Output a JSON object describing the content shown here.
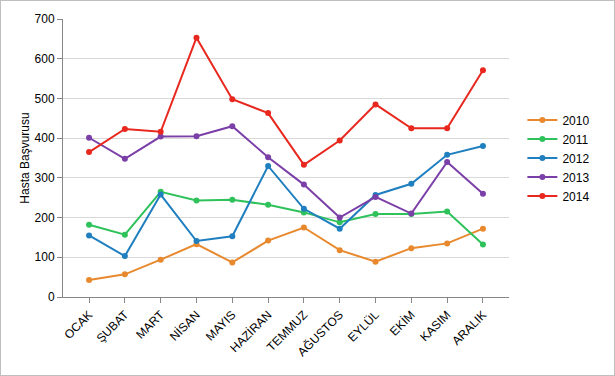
{
  "chart_data": {
    "type": "line",
    "y_label": "Hasta Başvurusu",
    "categories": [
      "OCAK",
      "ŞUBAT",
      "MART",
      "NİSAN",
      "MAYIS",
      "HAZİRAN",
      "TEMMUZ",
      "AĞUSTOS",
      "EYLÜL",
      "EKİM",
      "KASIM",
      "ARALIK"
    ],
    "series": [
      {
        "name": "2010",
        "color": "#e8892d",
        "values": [
          43,
          57,
          94,
          133,
          87,
          142,
          175,
          118,
          89,
          123,
          135,
          172
        ]
      },
      {
        "name": "2011",
        "color": "#2fc25b",
        "values": [
          182,
          157,
          265,
          243,
          245,
          232,
          213,
          188,
          209,
          209,
          215,
          132
        ]
      },
      {
        "name": "2012",
        "color": "#1f7fbf",
        "values": [
          155,
          103,
          258,
          141,
          153,
          330,
          222,
          172,
          257,
          285,
          358,
          380
        ]
      },
      {
        "name": "2013",
        "color": "#7b3fa8",
        "values": [
          401,
          348,
          404,
          405,
          430,
          352,
          283,
          200,
          252,
          210,
          340,
          260
        ]
      },
      {
        "name": "2014",
        "color": "#e8281e",
        "values": [
          365,
          423,
          416,
          653,
          498,
          463,
          333,
          394,
          485,
          425,
          425,
          571
        ]
      }
    ],
    "ylim": [
      0,
      700
    ],
    "yticks": [
      0,
      100,
      200,
      300,
      400,
      500,
      600,
      700
    ],
    "grid": true,
    "legend": "right",
    "marker": "circle"
  }
}
